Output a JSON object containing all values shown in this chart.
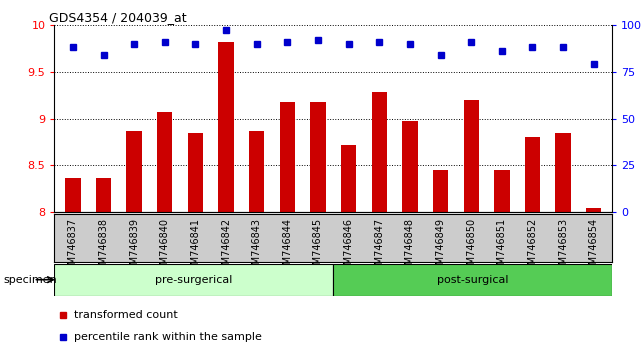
{
  "title": "GDS4354 / 204039_at",
  "samples": [
    "GSM746837",
    "GSM746838",
    "GSM746839",
    "GSM746840",
    "GSM746841",
    "GSM746842",
    "GSM746843",
    "GSM746844",
    "GSM746845",
    "GSM746846",
    "GSM746847",
    "GSM746848",
    "GSM746849",
    "GSM746850",
    "GSM746851",
    "GSM746852",
    "GSM746853",
    "GSM746854"
  ],
  "bar_values": [
    8.37,
    8.37,
    8.87,
    9.07,
    8.85,
    9.82,
    8.87,
    9.18,
    9.18,
    8.72,
    9.28,
    8.97,
    8.45,
    9.2,
    8.45,
    8.8,
    8.85,
    8.05
  ],
  "dot_values": [
    88,
    84,
    90,
    91,
    90,
    97,
    90,
    91,
    92,
    90,
    91,
    90,
    84,
    91,
    86,
    88,
    88,
    79
  ],
  "pre_surgical_count": 9,
  "post_surgical_count": 9,
  "ylim_left": [
    8.0,
    10.0
  ],
  "ylim_right": [
    0,
    100
  ],
  "yticks_left": [
    8.0,
    8.5,
    9.0,
    9.5,
    10.0
  ],
  "yticks_right": [
    0,
    25,
    50,
    75,
    100
  ],
  "bar_color": "#cc0000",
  "dot_color": "#0000cc",
  "pre_color": "#ccffcc",
  "post_color": "#55cc55",
  "bg_color": "#cccccc",
  "legend_bar": "transformed count",
  "legend_dot": "percentile rank within the sample"
}
